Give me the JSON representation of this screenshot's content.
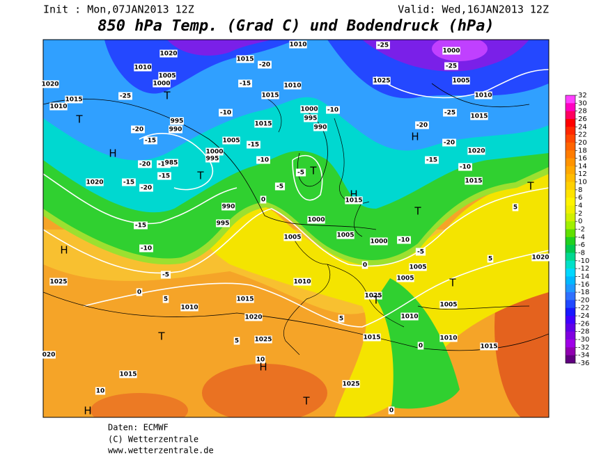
{
  "header": {
    "init": "Init : Mon,07JAN2013 12Z",
    "valid": "Valid: Wed,16JAN2013 12Z",
    "title": "850 hPa Temp. (Grad C) und Bodendruck (hPa)"
  },
  "colorbar": {
    "ticks": [
      32,
      30,
      28,
      26,
      24,
      22,
      20,
      18,
      16,
      14,
      12,
      10,
      8,
      6,
      4,
      2,
      0,
      -2,
      -4,
      -6,
      -8,
      -10,
      -12,
      -14,
      -16,
      -18,
      -20,
      -22,
      -24,
      -26,
      -28,
      -30,
      -32,
      -34,
      -36
    ],
    "colors": [
      "#ff40ff",
      "#ff00c0",
      "#ff0060",
      "#ff0000",
      "#ff2800",
      "#ff4800",
      "#ff6400",
      "#ff7c00",
      "#ff9400",
      "#ffa800",
      "#ffbc00",
      "#ffd000",
      "#ffe400",
      "#fff400",
      "#f0f000",
      "#d0f000",
      "#a0f000",
      "#60e000",
      "#20d020",
      "#00c850",
      "#00d890",
      "#00e0c8",
      "#00d8ff",
      "#00b8ff",
      "#2098ff",
      "#3070ff",
      "#2048ff",
      "#1818ff",
      "#4000ff",
      "#6000e8",
      "#8000e0",
      "#a000e8",
      "#9000b0",
      "#600080"
    ]
  },
  "map_labels": [
    "1020",
    "1015",
    "1010",
    "-25",
    "1000",
    "1010",
    "1005",
    "1000",
    "-20",
    "-15",
    "1010",
    "1025",
    "-25",
    "1005",
    "1020",
    "1015",
    "1010",
    "-25",
    "T",
    "1015",
    "1010",
    "T",
    "995",
    "990",
    "-10",
    "1000",
    "-10",
    "995",
    "990",
    "-25",
    "1015",
    "-20",
    "1015",
    "-20",
    "H",
    "H",
    "-15",
    "1000",
    "995",
    "1005",
    "-15",
    "-20",
    "1020",
    "-20",
    "-15",
    "985",
    "-15",
    "T",
    "-10",
    "-15",
    "-5",
    "T",
    "-10",
    "1020",
    "-15",
    "-20",
    "-5",
    "1015",
    "T",
    "H",
    "1015",
    "0",
    "990",
    "T",
    "995",
    "1000",
    "-15",
    "1005",
    "1005",
    "1000",
    "-10",
    "H",
    "-10",
    "-5",
    "0",
    "1005",
    "-5",
    "1025",
    "1005",
    "1010",
    "T",
    "0",
    "5",
    "1025",
    "T",
    "1015",
    "1005",
    "1010",
    "1020",
    "1010",
    "5",
    "T",
    "1025",
    "5",
    "1015",
    "0",
    "1010",
    "1015",
    "020",
    "10",
    "H",
    "1015",
    "1025",
    "10",
    "T",
    "H",
    "0",
    "1020",
    "5",
    "5"
  ],
  "footer": [
    "Daten: ECMWF",
    "(C) Wetterzentrale",
    "www.wetterzentrale.de"
  ]
}
